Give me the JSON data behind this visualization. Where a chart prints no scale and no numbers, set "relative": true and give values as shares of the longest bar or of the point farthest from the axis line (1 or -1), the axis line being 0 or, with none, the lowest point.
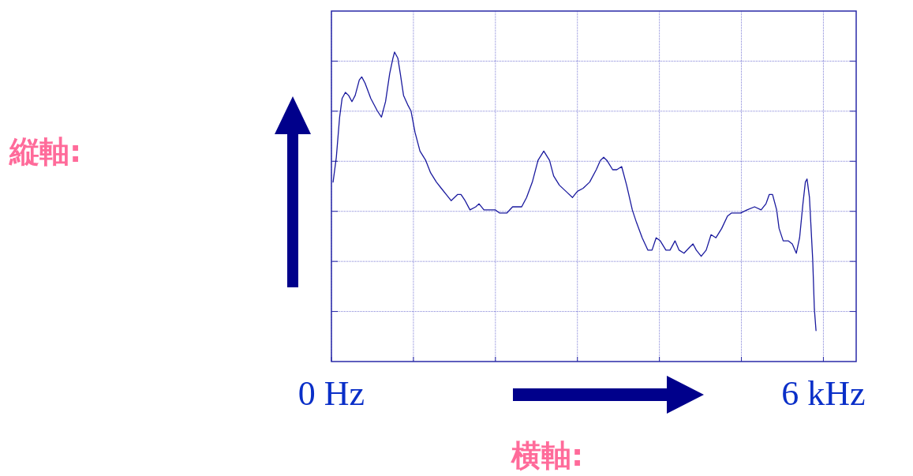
{
  "chart_data": {
    "type": "line",
    "relative": true,
    "grid": true,
    "color": "#1a1a9e",
    "xlim": [
      0,
      6.4
    ],
    "xticks": [
      {
        "value": 0,
        "label": "0 Hz"
      },
      {
        "value": 1,
        "label": null
      },
      {
        "value": 2,
        "label": null
      },
      {
        "value": 3,
        "label": null
      },
      {
        "value": 4,
        "label": null
      },
      {
        "value": 5,
        "label": null
      },
      {
        "value": 6,
        "label": "6 kHz"
      }
    ],
    "annotations": [
      "縦軸:",
      "横軸:"
    ],
    "x": [
      0.02,
      0.06,
      0.1,
      0.13,
      0.17,
      0.21,
      0.25,
      0.29,
      0.34,
      0.37,
      0.41,
      0.48,
      0.56,
      0.61,
      0.66,
      0.71,
      0.75,
      0.77,
      0.81,
      0.84,
      0.88,
      0.93,
      0.97,
      1.02,
      1.08,
      1.15,
      1.21,
      1.28,
      1.34,
      1.4,
      1.46,
      1.54,
      1.58,
      1.63,
      1.69,
      1.76,
      1.8,
      1.86,
      1.92,
      2.0,
      2.05,
      2.09,
      2.14,
      2.21,
      2.27,
      2.32,
      2.38,
      2.45,
      2.52,
      2.59,
      2.66,
      2.71,
      2.78,
      2.86,
      2.94,
      3.0,
      3.07,
      3.15,
      3.23,
      3.28,
      3.32,
      3.36,
      3.43,
      3.48,
      3.54,
      3.6,
      3.67,
      3.72,
      3.79,
      3.86,
      3.91,
      3.96,
      4.01,
      4.08,
      4.13,
      4.19,
      4.24,
      4.3,
      4.37,
      4.41,
      4.45,
      4.51,
      4.57,
      4.63,
      4.69,
      4.76,
      4.83,
      4.88,
      4.92,
      4.99,
      5.07,
      5.16,
      5.24,
      5.3,
      5.34,
      5.38,
      5.43,
      5.46,
      5.51,
      5.57,
      5.62,
      5.67,
      5.71,
      5.75,
      5.78,
      5.8,
      5.83,
      5.87,
      5.89,
      5.91
    ],
    "values": [
      0.58,
      0.66,
      0.79,
      0.85,
      0.87,
      0.86,
      0.84,
      0.86,
      0.91,
      0.92,
      0.9,
      0.85,
      0.81,
      0.79,
      0.84,
      0.93,
      0.98,
      1,
      0.98,
      0.93,
      0.86,
      0.83,
      0.81,
      0.74,
      0.68,
      0.65,
      0.61,
      0.58,
      0.56,
      0.54,
      0.52,
      0.54,
      0.54,
      0.52,
      0.49,
      0.5,
      0.51,
      0.49,
      0.49,
      0.49,
      0.48,
      0.48,
      0.48,
      0.5,
      0.5,
      0.5,
      0.53,
      0.58,
      0.65,
      0.68,
      0.65,
      0.6,
      0.57,
      0.55,
      0.53,
      0.55,
      0.56,
      0.58,
      0.62,
      0.65,
      0.66,
      0.65,
      0.62,
      0.62,
      0.63,
      0.57,
      0.49,
      0.45,
      0.4,
      0.36,
      0.36,
      0.4,
      0.39,
      0.36,
      0.36,
      0.39,
      0.36,
      0.35,
      0.37,
      0.38,
      0.36,
      0.34,
      0.36,
      0.41,
      0.4,
      0.43,
      0.47,
      0.48,
      0.48,
      0.48,
      0.49,
      0.5,
      0.49,
      0.51,
      0.54,
      0.54,
      0.49,
      0.43,
      0.39,
      0.39,
      0.38,
      0.35,
      0.4,
      0.51,
      0.58,
      0.59,
      0.53,
      0.33,
      0.17,
      0.1
    ]
  }
}
